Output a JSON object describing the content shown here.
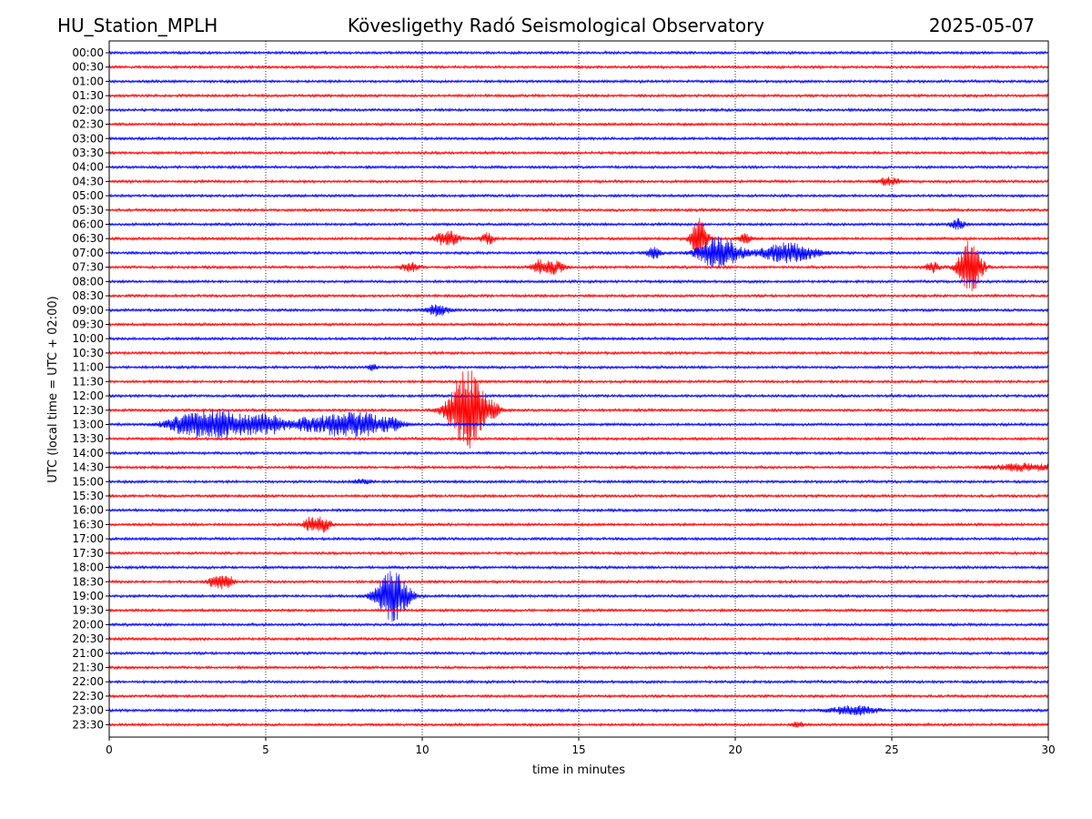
{
  "header": {
    "station": "HU_Station_MPLH",
    "observatory": "Kövesligethy Radó Seismological Observatory",
    "date": "2025-05-07"
  },
  "chart_data": {
    "type": "line",
    "title": "Kövesligethy Radó Seismological Observatory",
    "xlabel": "time in minutes",
    "ylabel": "UTC (local time = UTC + 02:00)",
    "xlim": [
      0,
      30
    ],
    "xticks": [
      0,
      5,
      10,
      15,
      20,
      25,
      30
    ],
    "grid": "vertical dotted at x ticks",
    "series_colors": {
      "even": "#0000ff",
      "odd": "#ff0000"
    },
    "rows": [
      {
        "label": "00:00",
        "events": []
      },
      {
        "label": "00:30",
        "events": []
      },
      {
        "label": "01:00",
        "events": []
      },
      {
        "label": "01:30",
        "events": []
      },
      {
        "label": "02:00",
        "events": []
      },
      {
        "label": "02:30",
        "events": []
      },
      {
        "label": "03:00",
        "events": []
      },
      {
        "label": "03:30",
        "events": []
      },
      {
        "label": "04:00",
        "events": []
      },
      {
        "label": "04:30",
        "events": [
          {
            "t": 24.9,
            "amp": 4,
            "dur": 0.5
          }
        ]
      },
      {
        "label": "05:00",
        "events": []
      },
      {
        "label": "05:30",
        "events": []
      },
      {
        "label": "06:00",
        "events": [
          {
            "t": 27.1,
            "amp": 6,
            "dur": 0.3
          }
        ]
      },
      {
        "label": "06:30",
        "events": [
          {
            "t": 10.8,
            "amp": 9,
            "dur": 0.5
          },
          {
            "t": 12.1,
            "amp": 6,
            "dur": 0.3
          },
          {
            "t": 18.85,
            "amp": 24,
            "dur": 0.35
          },
          {
            "t": 20.3,
            "amp": 5,
            "dur": 0.3
          }
        ]
      },
      {
        "label": "07:00",
        "events": [
          {
            "t": 17.4,
            "amp": 7,
            "dur": 0.3
          },
          {
            "t": 19.5,
            "amp": 18,
            "dur": 0.9
          },
          {
            "t": 21.7,
            "amp": 11,
            "dur": 1.2
          }
        ]
      },
      {
        "label": "07:30",
        "events": [
          {
            "t": 9.6,
            "amp": 5,
            "dur": 0.4
          },
          {
            "t": 13.7,
            "amp": 7,
            "dur": 0.3
          },
          {
            "t": 14.2,
            "amp": 7,
            "dur": 0.5
          },
          {
            "t": 26.3,
            "amp": 6,
            "dur": 0.3
          },
          {
            "t": 27.5,
            "amp": 30,
            "dur": 0.5
          }
        ]
      },
      {
        "label": "08:00",
        "events": []
      },
      {
        "label": "08:30",
        "events": []
      },
      {
        "label": "09:00",
        "events": [
          {
            "t": 10.5,
            "amp": 7,
            "dur": 0.5
          }
        ]
      },
      {
        "label": "09:30",
        "events": []
      },
      {
        "label": "10:00",
        "events": []
      },
      {
        "label": "10:30",
        "events": []
      },
      {
        "label": "11:00",
        "events": [
          {
            "t": 8.4,
            "amp": 4,
            "dur": 0.2
          }
        ]
      },
      {
        "label": "11:30",
        "events": []
      },
      {
        "label": "12:00",
        "events": []
      },
      {
        "label": "12:30",
        "events": [
          {
            "t": 11.45,
            "amp": 46,
            "dur": 0.8
          },
          {
            "t": 12.3,
            "amp": 4,
            "dur": 0.3
          }
        ]
      },
      {
        "label": "13:00",
        "events": [
          {
            "t": 2.7,
            "amp": 13,
            "dur": 1.1
          },
          {
            "t": 3.8,
            "amp": 13,
            "dur": 0.9
          },
          {
            "t": 5.0,
            "amp": 12,
            "dur": 0.9
          },
          {
            "t": 6.2,
            "amp": 5,
            "dur": 0.5
          },
          {
            "t": 7.3,
            "amp": 13,
            "dur": 1.1
          },
          {
            "t": 8.2,
            "amp": 11,
            "dur": 0.6
          },
          {
            "t": 9.0,
            "amp": 7,
            "dur": 0.6
          }
        ]
      },
      {
        "label": "13:30",
        "events": []
      },
      {
        "label": "14:00",
        "events": []
      },
      {
        "label": "14:30",
        "events": [
          {
            "t": 29.3,
            "amp": 4,
            "dur": 1.4
          }
        ]
      },
      {
        "label": "15:00",
        "events": [
          {
            "t": 8.1,
            "amp": 3,
            "dur": 0.4
          }
        ]
      },
      {
        "label": "15:30",
        "events": []
      },
      {
        "label": "16:00",
        "events": []
      },
      {
        "label": "16:30",
        "events": [
          {
            "t": 6.4,
            "amp": 7,
            "dur": 0.3
          },
          {
            "t": 6.8,
            "amp": 8,
            "dur": 0.4
          }
        ]
      },
      {
        "label": "17:00",
        "events": []
      },
      {
        "label": "17:30",
        "events": []
      },
      {
        "label": "18:00",
        "events": []
      },
      {
        "label": "18:30",
        "events": [
          {
            "t": 3.4,
            "amp": 7,
            "dur": 0.3
          },
          {
            "t": 3.75,
            "amp": 8,
            "dur": 0.3
          }
        ]
      },
      {
        "label": "19:00",
        "events": [
          {
            "t": 9.05,
            "amp": 28,
            "dur": 0.7
          }
        ]
      },
      {
        "label": "19:30",
        "events": []
      },
      {
        "label": "20:00",
        "events": []
      },
      {
        "label": "20:30",
        "events": []
      },
      {
        "label": "21:00",
        "events": []
      },
      {
        "label": "21:30",
        "events": []
      },
      {
        "label": "22:00",
        "events": []
      },
      {
        "label": "22:30",
        "events": []
      },
      {
        "label": "23:00",
        "events": [
          {
            "t": 23.8,
            "amp": 5,
            "dur": 1.0
          }
        ]
      },
      {
        "label": "23:30",
        "events": [
          {
            "t": 22.0,
            "amp": 4,
            "dur": 0.2
          }
        ]
      }
    ]
  }
}
